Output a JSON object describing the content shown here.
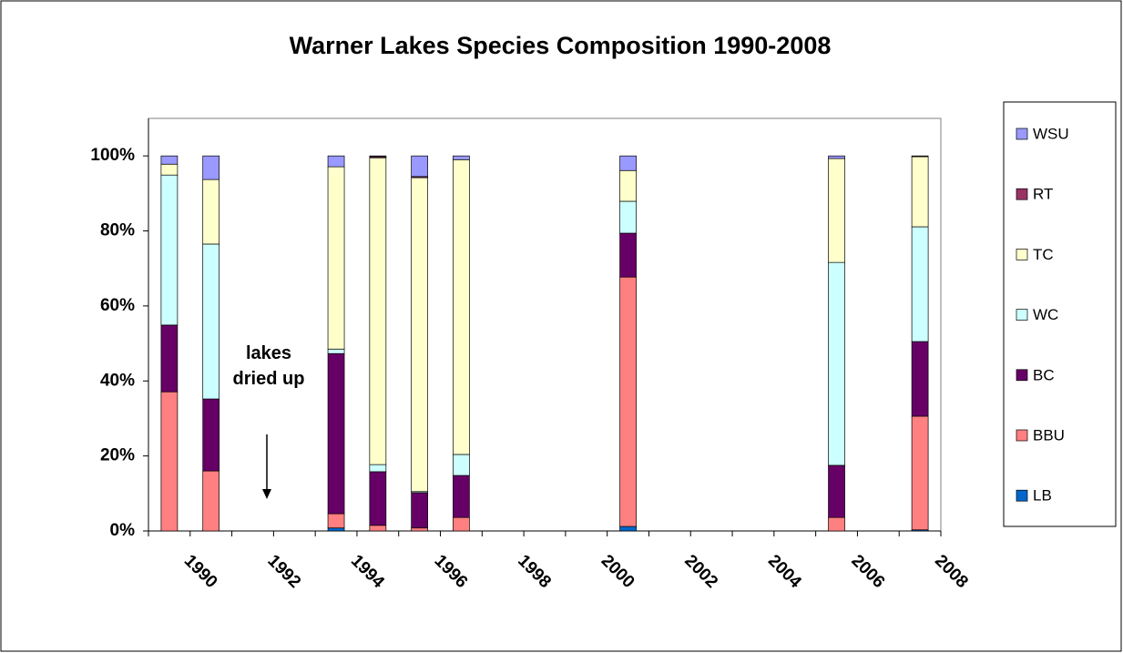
{
  "chart_data": {
    "type": "stacked_bar",
    "title": "Warner Lakes Species Composition 1990-2008",
    "annotation": "lakes dried up",
    "categories": [
      "1990",
      null,
      "1992",
      null,
      "1994",
      null,
      "1996",
      null,
      "1998",
      null,
      "2000",
      null,
      "2002",
      null,
      "2004",
      null,
      "2006",
      null,
      "2008"
    ],
    "series": [
      {
        "name": "LB",
        "color": "#0066cc",
        "values": [
          0,
          0,
          null,
          null,
          0.8,
          0,
          0,
          0,
          null,
          null,
          null,
          1.2,
          null,
          null,
          null,
          null,
          0,
          null,
          0.3
        ]
      },
      {
        "name": "BBU",
        "color": "#ff8080",
        "values": [
          37.1,
          16,
          null,
          null,
          3.8,
          1.5,
          0.8,
          3.6,
          null,
          null,
          null,
          66.5,
          null,
          null,
          null,
          null,
          3.6,
          null,
          30.3
        ]
      },
      {
        "name": "BC",
        "color": "#660066",
        "values": [
          17.8,
          19.2,
          null,
          null,
          42.7,
          14.3,
          9.4,
          11.2,
          null,
          null,
          null,
          11.7,
          null,
          null,
          null,
          null,
          13.9,
          null,
          19.9
        ]
      },
      {
        "name": "WC",
        "color": "#ccffff",
        "values": [
          40,
          41.3,
          null,
          null,
          1.2,
          1.9,
          0.3,
          5.6,
          null,
          null,
          null,
          8.5,
          null,
          null,
          null,
          null,
          54.1,
          null,
          30.6
        ]
      },
      {
        "name": "TC",
        "color": "#ffffcc",
        "values": [
          2.9,
          17.2,
          null,
          null,
          48.6,
          81.8,
          83.7,
          78.6,
          null,
          null,
          null,
          8.2,
          null,
          null,
          null,
          null,
          27.7,
          null,
          18.7
        ]
      },
      {
        "name": "RT",
        "color": "#993366",
        "values": [
          0,
          0,
          null,
          null,
          0,
          0.3,
          0.3,
          0,
          null,
          null,
          null,
          0,
          null,
          null,
          null,
          null,
          0,
          null,
          0.2
        ]
      },
      {
        "name": "WSU",
        "color": "#9999ff",
        "values": [
          2.2,
          6.3,
          null,
          null,
          2.9,
          0.2,
          5.5,
          1,
          null,
          null,
          null,
          3.9,
          null,
          null,
          null,
          null,
          0.7,
          null,
          0
        ]
      }
    ],
    "ylim": [
      0,
      110
    ],
    "yticks": [
      {
        "value": 0,
        "label": "0%"
      },
      {
        "value": 20,
        "label": "20%"
      },
      {
        "value": 40,
        "label": "40%"
      },
      {
        "value": 60,
        "label": "60%"
      },
      {
        "value": 80,
        "label": "80%"
      },
      {
        "value": 100,
        "label": "100%"
      }
    ],
    "grid": false,
    "legend": "right"
  }
}
